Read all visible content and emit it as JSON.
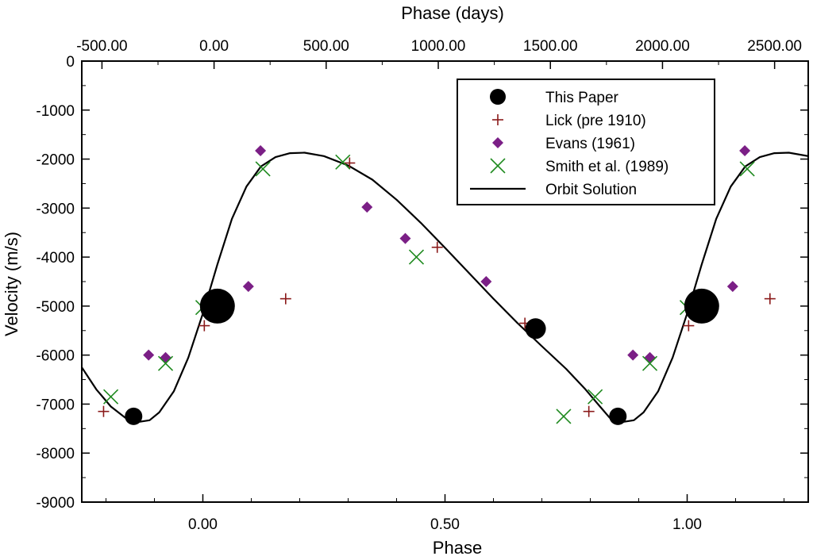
{
  "chart_data": {
    "type": "scatter",
    "xlabel": "Phase",
    "x2label": "Phase (days)",
    "ylabel": "Velocity (m/s)",
    "xlim": [
      -0.25,
      1.25
    ],
    "ylim": [
      -9000,
      0
    ],
    "x2lim": [
      -590,
      2650
    ],
    "grid": false,
    "legend_position": "top-right",
    "x_ticks": [
      {
        "value": 0,
        "label": "0.00"
      },
      {
        "value": 0.5,
        "label": "0.50"
      },
      {
        "value": 1,
        "label": "1.00"
      }
    ],
    "x2_ticks": [
      {
        "value": -500,
        "label": "-500.00"
      },
      {
        "value": 0,
        "label": "0.00"
      },
      {
        "value": 500,
        "label": "500.00"
      },
      {
        "value": 1000,
        "label": "1000.00"
      },
      {
        "value": 1500,
        "label": "1500.00"
      },
      {
        "value": 2000,
        "label": "2000.00"
      },
      {
        "value": 2500,
        "label": "2500.00"
      }
    ],
    "y_ticks": [
      {
        "value": 0,
        "label": "0"
      },
      {
        "value": -1000,
        "label": "-1000"
      },
      {
        "value": -2000,
        "label": "-2000"
      },
      {
        "value": -3000,
        "label": "-3000"
      },
      {
        "value": -4000,
        "label": "-4000"
      },
      {
        "value": -5000,
        "label": "-5000"
      },
      {
        "value": -6000,
        "label": "-6000"
      },
      {
        "value": -7000,
        "label": "-7000"
      },
      {
        "value": -8000,
        "label": "-8000"
      },
      {
        "value": -9000,
        "label": "-9000"
      }
    ],
    "series": [
      {
        "name": "This Paper",
        "marker": "circle",
        "color": "#000000",
        "points": [
          {
            "x": -0.143,
            "y": -7250,
            "size": 11
          },
          {
            "x": 0.03,
            "y": -5000,
            "size": 22
          },
          {
            "x": 0.687,
            "y": -5460,
            "size": 13
          },
          {
            "x": 0.857,
            "y": -7250,
            "size": 11
          },
          {
            "x": 1.03,
            "y": -5000,
            "size": 22
          }
        ]
      },
      {
        "name": "Lick (pre 1910)",
        "marker": "plus",
        "color": "#8b1a1a",
        "points": [
          {
            "x": -0.205,
            "y": -7150
          },
          {
            "x": 0.003,
            "y": -5400
          },
          {
            "x": 0.171,
            "y": -4850
          },
          {
            "x": 0.303,
            "y": -2080
          },
          {
            "x": 0.484,
            "y": -3800
          },
          {
            "x": 0.665,
            "y": -5350
          },
          {
            "x": 0.797,
            "y": -7150
          },
          {
            "x": 1.003,
            "y": -5400
          },
          {
            "x": 1.171,
            "y": -4850
          }
        ]
      },
      {
        "name": "Evans (1961)",
        "marker": "diamond",
        "color": "#7b1f86",
        "points": [
          {
            "x": -0.112,
            "y": -6000
          },
          {
            "x": -0.077,
            "y": -6050
          },
          {
            "x": 0.094,
            "y": -4600
          },
          {
            "x": 0.119,
            "y": -1830
          },
          {
            "x": 0.339,
            "y": -2980
          },
          {
            "x": 0.418,
            "y": -3620
          },
          {
            "x": 0.585,
            "y": -4500
          },
          {
            "x": 0.888,
            "y": -6000
          },
          {
            "x": 0.923,
            "y": -6050
          },
          {
            "x": 1.094,
            "y": -4600
          },
          {
            "x": 1.119,
            "y": -1830
          }
        ]
      },
      {
        "name": "Smith et al. (1989)",
        "marker": "x",
        "color": "#1f8a1f",
        "points": [
          {
            "x": -0.19,
            "y": -6850
          },
          {
            "x": -0.077,
            "y": -6170
          },
          {
            "x": 0.0,
            "y": -5030
          },
          {
            "x": 0.124,
            "y": -2200
          },
          {
            "x": 0.289,
            "y": -2060
          },
          {
            "x": 0.441,
            "y": -4000
          },
          {
            "x": 0.745,
            "y": -7250
          },
          {
            "x": 0.81,
            "y": -6850
          },
          {
            "x": 0.923,
            "y": -6170
          },
          {
            "x": 1.0,
            "y": -5030
          },
          {
            "x": 1.124,
            "y": -2200
          }
        ]
      },
      {
        "name": "Orbit Solution",
        "marker": "line",
        "color": "#000000",
        "points": [
          {
            "x": -0.25,
            "y": -6250
          },
          {
            "x": -0.22,
            "y": -6700
          },
          {
            "x": -0.19,
            "y": -7050
          },
          {
            "x": -0.16,
            "y": -7280
          },
          {
            "x": -0.13,
            "y": -7360
          },
          {
            "x": -0.11,
            "y": -7330
          },
          {
            "x": -0.09,
            "y": -7170
          },
          {
            "x": -0.06,
            "y": -6740
          },
          {
            "x": -0.03,
            "y": -6050
          },
          {
            "x": 0.0,
            "y": -5150
          },
          {
            "x": 0.03,
            "y": -4150
          },
          {
            "x": 0.06,
            "y": -3220
          },
          {
            "x": 0.09,
            "y": -2560
          },
          {
            "x": 0.12,
            "y": -2150
          },
          {
            "x": 0.15,
            "y": -1960
          },
          {
            "x": 0.18,
            "y": -1880
          },
          {
            "x": 0.21,
            "y": -1870
          },
          {
            "x": 0.25,
            "y": -1940
          },
          {
            "x": 0.3,
            "y": -2130
          },
          {
            "x": 0.35,
            "y": -2420
          },
          {
            "x": 0.4,
            "y": -2830
          },
          {
            "x": 0.45,
            "y": -3300
          },
          {
            "x": 0.5,
            "y": -3810
          },
          {
            "x": 0.55,
            "y": -4330
          },
          {
            "x": 0.6,
            "y": -4850
          },
          {
            "x": 0.65,
            "y": -5350
          },
          {
            "x": 0.7,
            "y": -5820
          },
          {
            "x": 0.75,
            "y": -6280
          },
          {
            "x": 0.79,
            "y": -6700
          },
          {
            "x": 0.82,
            "y": -7050
          },
          {
            "x": 0.84,
            "y": -7280
          },
          {
            "x": 0.87,
            "y": -7360
          },
          {
            "x": 0.89,
            "y": -7330
          },
          {
            "x": 0.91,
            "y": -7170
          },
          {
            "x": 0.94,
            "y": -6740
          },
          {
            "x": 0.97,
            "y": -6050
          },
          {
            "x": 1.0,
            "y": -5150
          },
          {
            "x": 1.03,
            "y": -4150
          },
          {
            "x": 1.06,
            "y": -3220
          },
          {
            "x": 1.09,
            "y": -2560
          },
          {
            "x": 1.12,
            "y": -2150
          },
          {
            "x": 1.15,
            "y": -1960
          },
          {
            "x": 1.18,
            "y": -1880
          },
          {
            "x": 1.21,
            "y": -1870
          },
          {
            "x": 1.25,
            "y": -1940
          }
        ]
      }
    ]
  }
}
